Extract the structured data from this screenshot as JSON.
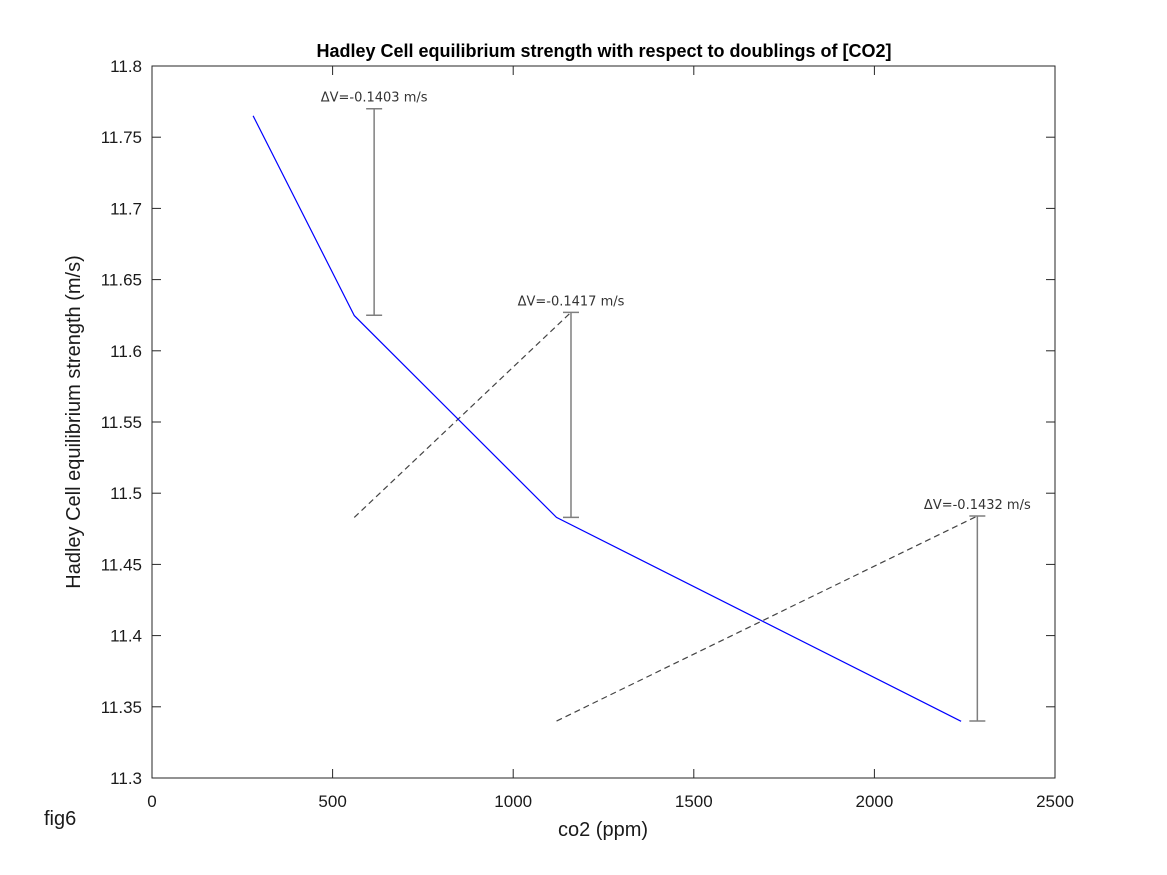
{
  "figure_label": "fig6",
  "chart_data": {
    "type": "line",
    "title": "Hadley Cell equilibrium strength with respect to doublings of [CO2]",
    "xlabel": "co2 (ppm)",
    "ylabel": "Hadley Cell equilibrium strength (m/s)",
    "xlim": [
      0,
      2500
    ],
    "ylim": [
      11.3,
      11.8
    ],
    "xticks": [
      0,
      500,
      1000,
      1500,
      2000,
      2500
    ],
    "xtick_labels": [
      "0",
      "500",
      "1000",
      "1500",
      "2000",
      "2500"
    ],
    "yticks": [
      11.3,
      11.35,
      11.4,
      11.45,
      11.5,
      11.55,
      11.6,
      11.65,
      11.7,
      11.75,
      11.8
    ],
    "ytick_labels": [
      "11.3",
      "11.35",
      "11.4",
      "11.45",
      "11.5",
      "11.55",
      "11.6",
      "11.65",
      "11.7",
      "11.75",
      "11.8"
    ],
    "grid": false,
    "series": [
      {
        "x": [
          280,
          560,
          1120,
          2240
        ],
        "y": [
          11.765,
          11.6247,
          11.483,
          11.3398
        ],
        "color": "#0000ff"
      }
    ],
    "annotations": [
      {
        "text": "ΔV=-0.1403 m/s",
        "x": 615,
        "y_top": 11.77,
        "y_bottom": 11.625,
        "dashed_from_x": null
      },
      {
        "text": "ΔV=-0.1417 m/s",
        "x": 1160,
        "y_top": 11.627,
        "y_bottom": 11.483,
        "dashed_from_x": 560
      },
      {
        "text": "ΔV=-0.1432 m/s",
        "x": 2285,
        "y_top": 11.484,
        "y_bottom": 11.34,
        "dashed_from_x": 1120
      }
    ],
    "annotation_color": "#7f7f7f"
  }
}
